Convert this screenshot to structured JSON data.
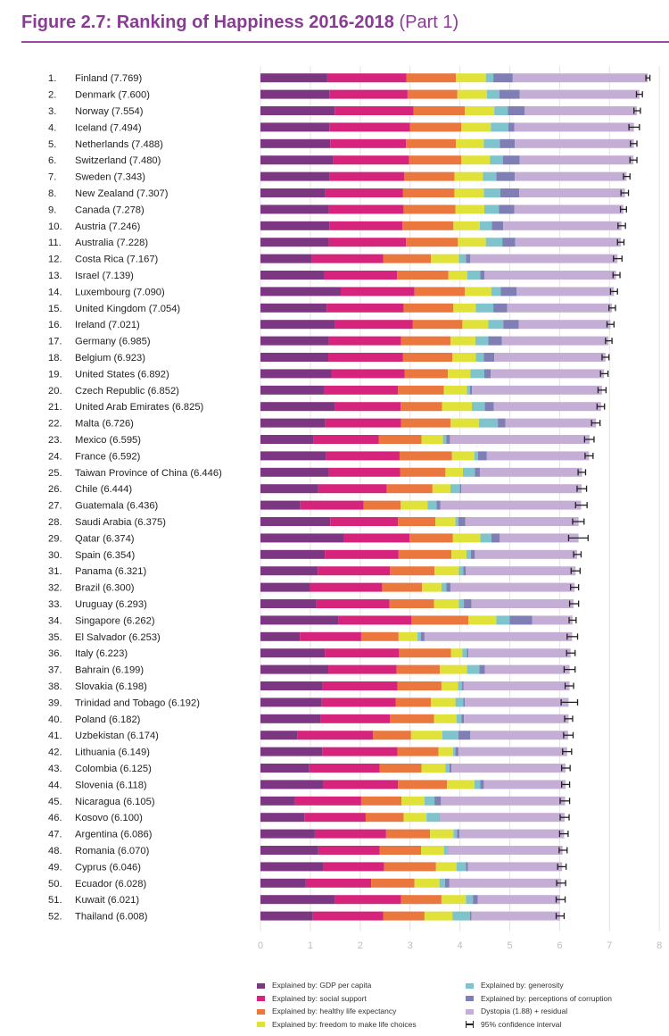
{
  "title": {
    "bold": "Figure 2.7: Ranking of Happiness 2016-2018",
    "suffix": "(Part 1)"
  },
  "colors": {
    "gdp": "#7d3782",
    "social": "#d6247c",
    "health": "#e9773e",
    "freedom": "#e0e23a",
    "generosity": "#7fc3cc",
    "corruption": "#7f7fb5",
    "dystopia": "#c4aed6",
    "axis_text": "#bdbdbd",
    "gridline": "#e3e3e3"
  },
  "chart_data": {
    "type": "bar",
    "orientation": "horizontal",
    "stacked": true,
    "title": "Figure 2.7: Ranking of Happiness 2016-2018 (Part 1)",
    "xlim": [
      0,
      8
    ],
    "xticks": [
      "0",
      "1",
      "2",
      "3",
      "4",
      "5",
      "6",
      "7",
      "8"
    ],
    "series_keys": [
      "gdp",
      "social",
      "health",
      "freedom",
      "generosity",
      "corruption",
      "dystopia"
    ],
    "legend": [
      {
        "key": "gdp",
        "label": "Explained by: GDP per capita"
      },
      {
        "key": "social",
        "label": "Explained by: social support"
      },
      {
        "key": "health",
        "label": "Explained by: healthy life expectancy"
      },
      {
        "key": "freedom",
        "label": "Explained by: freedom to make life choices"
      },
      {
        "key": "generosity",
        "label": "Explained by: generosity"
      },
      {
        "key": "corruption",
        "label": "Explained by: perceptions of corruption"
      },
      {
        "key": "dystopia",
        "label": "Dystopia (1.88) + residual"
      },
      {
        "key": "ci",
        "label": "95% confidence interval"
      }
    ],
    "rows": [
      {
        "rank": "1.",
        "label": "Finland (7.769)",
        "score": 7.769,
        "ci": [
          7.73,
          7.81
        ],
        "values": [
          1.34,
          1.59,
          0.99,
          0.6,
          0.15,
          0.39,
          2.71
        ]
      },
      {
        "rank": "2.",
        "label": "Denmark (7.600)",
        "score": 7.6,
        "ci": [
          7.54,
          7.66
        ],
        "values": [
          1.38,
          1.57,
          1.0,
          0.59,
          0.25,
          0.41,
          2.4
        ]
      },
      {
        "rank": "3.",
        "label": "Norway (7.554)",
        "score": 7.554,
        "ci": [
          7.49,
          7.62
        ],
        "values": [
          1.49,
          1.58,
          1.03,
          0.59,
          0.27,
          0.34,
          2.25
        ]
      },
      {
        "rank": "4.",
        "label": "Iceland (7.494)",
        "score": 7.494,
        "ci": [
          7.39,
          7.6
        ],
        "values": [
          1.38,
          1.62,
          1.03,
          0.59,
          0.35,
          0.12,
          2.4
        ]
      },
      {
        "rank": "5.",
        "label": "Netherlands (7.488)",
        "score": 7.488,
        "ci": [
          7.42,
          7.55
        ],
        "values": [
          1.4,
          1.52,
          1.0,
          0.56,
          0.32,
          0.3,
          2.39
        ]
      },
      {
        "rank": "6.",
        "label": "Switzerland (7.480)",
        "score": 7.48,
        "ci": [
          7.41,
          7.55
        ],
        "values": [
          1.45,
          1.53,
          1.05,
          0.57,
          0.26,
          0.34,
          2.28
        ]
      },
      {
        "rank": "7.",
        "label": "Sweden (7.343)",
        "score": 7.343,
        "ci": [
          7.28,
          7.41
        ],
        "values": [
          1.39,
          1.49,
          1.01,
          0.57,
          0.27,
          0.37,
          2.24
        ]
      },
      {
        "rank": "8.",
        "label": "New Zealand (7.307)",
        "score": 7.307,
        "ci": [
          7.23,
          7.38
        ],
        "values": [
          1.3,
          1.56,
          1.03,
          0.59,
          0.33,
          0.38,
          2.12
        ]
      },
      {
        "rank": "9.",
        "label": "Canada (7.278)",
        "score": 7.278,
        "ci": [
          7.22,
          7.34
        ],
        "values": [
          1.37,
          1.5,
          1.04,
          0.58,
          0.29,
          0.31,
          2.19
        ]
      },
      {
        "rank": "10.",
        "label": "Austria (7.246)",
        "score": 7.246,
        "ci": [
          7.17,
          7.32
        ],
        "values": [
          1.38,
          1.47,
          1.02,
          0.53,
          0.24,
          0.23,
          2.37
        ]
      },
      {
        "rank": "11.",
        "label": "Australia (7.228)",
        "score": 7.228,
        "ci": [
          7.16,
          7.29
        ],
        "values": [
          1.37,
          1.55,
          1.04,
          0.56,
          0.33,
          0.26,
          2.12
        ]
      },
      {
        "rank": "12.",
        "label": "Costa Rica (7.167)",
        "score": 7.167,
        "ci": [
          7.08,
          7.25
        ],
        "values": [
          1.03,
          1.43,
          0.96,
          0.56,
          0.14,
          0.09,
          2.95
        ]
      },
      {
        "rank": "13.",
        "label": "Israel (7.139)",
        "score": 7.139,
        "ci": [
          7.07,
          7.21
        ],
        "values": [
          1.28,
          1.46,
          1.03,
          0.38,
          0.26,
          0.08,
          2.64
        ]
      },
      {
        "rank": "14.",
        "label": "Luxembourg (7.090)",
        "score": 7.09,
        "ci": [
          7.02,
          7.16
        ],
        "values": [
          1.61,
          1.48,
          1.01,
          0.53,
          0.19,
          0.32,
          1.95
        ]
      },
      {
        "rank": "15.",
        "label": "United Kingdom (7.054)",
        "score": 7.054,
        "ci": [
          6.99,
          7.12
        ],
        "values": [
          1.33,
          1.54,
          1.0,
          0.45,
          0.35,
          0.28,
          2.1
        ]
      },
      {
        "rank": "16.",
        "label": "Ireland (7.021)",
        "score": 7.021,
        "ci": [
          6.95,
          7.09
        ],
        "values": [
          1.5,
          1.55,
          1.0,
          0.52,
          0.3,
          0.31,
          1.84
        ]
      },
      {
        "rank": "17.",
        "label": "Germany (6.985)",
        "score": 6.985,
        "ci": [
          6.92,
          7.05
        ],
        "values": [
          1.37,
          1.45,
          0.99,
          0.5,
          0.26,
          0.27,
          2.14
        ]
      },
      {
        "rank": "18.",
        "label": "Belgium (6.923)",
        "score": 6.923,
        "ci": [
          6.85,
          6.99
        ],
        "values": [
          1.36,
          1.5,
          0.99,
          0.47,
          0.16,
          0.21,
          2.23
        ]
      },
      {
        "rank": "19.",
        "label": "United States (6.892)",
        "score": 6.892,
        "ci": [
          6.82,
          6.97
        ],
        "values": [
          1.43,
          1.46,
          0.87,
          0.45,
          0.28,
          0.13,
          2.27
        ]
      },
      {
        "rank": "20.",
        "label": "Czech Republic (6.852)",
        "score": 6.852,
        "ci": [
          6.77,
          6.93
        ],
        "values": [
          1.27,
          1.49,
          0.92,
          0.46,
          0.06,
          0.04,
          2.61
        ]
      },
      {
        "rank": "21.",
        "label": "United Arab Emirates (6.825)",
        "score": 6.825,
        "ci": [
          6.75,
          6.9
        ],
        "values": [
          1.5,
          1.31,
          0.83,
          0.6,
          0.26,
          0.18,
          2.15
        ]
      },
      {
        "rank": "22.",
        "label": "Malta (6.726)",
        "score": 6.726,
        "ci": [
          6.64,
          6.81
        ],
        "values": [
          1.3,
          1.52,
          0.99,
          0.57,
          0.38,
          0.15,
          1.82
        ]
      },
      {
        "rank": "23.",
        "label": "Mexico (6.595)",
        "score": 6.595,
        "ci": [
          6.5,
          6.69
        ],
        "values": [
          1.07,
          1.3,
          0.86,
          0.43,
          0.07,
          0.07,
          2.8
        ]
      },
      {
        "rank": "24.",
        "label": "France (6.592)",
        "score": 6.592,
        "ci": [
          6.51,
          6.67
        ],
        "values": [
          1.32,
          1.47,
          1.05,
          0.45,
          0.07,
          0.18,
          2.05
        ]
      },
      {
        "rank": "25.",
        "label": "Taiwan Province of China (6.446)",
        "score": 6.446,
        "ci": [
          6.37,
          6.52
        ],
        "values": [
          1.37,
          1.43,
          0.91,
          0.35,
          0.24,
          0.1,
          2.05
        ]
      },
      {
        "rank": "26.",
        "label": "Chile (6.444)",
        "score": 6.444,
        "ci": [
          6.35,
          6.54
        ],
        "values": [
          1.16,
          1.37,
          0.92,
          0.36,
          0.19,
          0.03,
          2.41
        ]
      },
      {
        "rank": "27.",
        "label": "Guatemala (6.436)",
        "score": 6.436,
        "ci": [
          6.32,
          6.55
        ],
        "values": [
          0.8,
          1.27,
          0.74,
          0.54,
          0.18,
          0.08,
          2.82
        ]
      },
      {
        "rank": "28.",
        "label": "Saudi Arabia (6.375)",
        "score": 6.375,
        "ci": [
          6.26,
          6.49
        ],
        "values": [
          1.4,
          1.36,
          0.75,
          0.4,
          0.06,
          0.14,
          2.27
        ]
      },
      {
        "rank": "29.",
        "label": "Qatar (6.374)",
        "score": 6.374,
        "ci": [
          6.18,
          6.57
        ],
        "values": [
          1.68,
          1.31,
          0.87,
          0.55,
          0.22,
          0.17,
          1.58
        ]
      },
      {
        "rank": "30.",
        "label": "Spain (6.354)",
        "score": 6.354,
        "ci": [
          6.28,
          6.43
        ],
        "values": [
          1.29,
          1.48,
          1.06,
          0.3,
          0.09,
          0.08,
          2.05
        ]
      },
      {
        "rank": "31.",
        "label": "Panama (6.321)",
        "score": 6.321,
        "ci": [
          6.23,
          6.41
        ],
        "values": [
          1.15,
          1.45,
          0.89,
          0.49,
          0.09,
          0.05,
          2.2
        ]
      },
      {
        "rank": "32.",
        "label": "Brazil (6.300)",
        "score": 6.3,
        "ci": [
          6.22,
          6.38
        ],
        "values": [
          1.0,
          1.44,
          0.8,
          0.39,
          0.1,
          0.08,
          2.49
        ]
      },
      {
        "rank": "33.",
        "label": "Uruguay (6.293)",
        "score": 6.293,
        "ci": [
          6.2,
          6.38
        ],
        "values": [
          1.12,
          1.47,
          0.89,
          0.5,
          0.1,
          0.15,
          2.05
        ]
      },
      {
        "rank": "34.",
        "label": "Singapore (6.262)",
        "score": 6.262,
        "ci": [
          6.19,
          6.33
        ],
        "values": [
          1.57,
          1.46,
          1.14,
          0.56,
          0.27,
          0.45,
          0.81
        ]
      },
      {
        "rank": "35.",
        "label": "El Salvador (6.253)",
        "score": 6.253,
        "ci": [
          6.15,
          6.36
        ],
        "values": [
          0.79,
          1.23,
          0.75,
          0.38,
          0.07,
          0.07,
          2.96
        ]
      },
      {
        "rank": "36.",
        "label": "Italy (6.223)",
        "score": 6.223,
        "ci": [
          6.14,
          6.31
        ],
        "values": [
          1.29,
          1.49,
          1.04,
          0.23,
          0.09,
          0.03,
          2.05
        ]
      },
      {
        "rank": "37.",
        "label": "Bahrain (6.199)",
        "score": 6.199,
        "ci": [
          6.09,
          6.31
        ],
        "values": [
          1.36,
          1.37,
          0.87,
          0.54,
          0.25,
          0.11,
          1.7
        ]
      },
      {
        "rank": "38.",
        "label": "Slovakia (6.198)",
        "score": 6.198,
        "ci": [
          6.11,
          6.28
        ],
        "values": [
          1.25,
          1.5,
          0.88,
          0.33,
          0.08,
          0.03,
          2.13
        ]
      },
      {
        "rank": "39.",
        "label": "Trinidad and Tobago (6.192)",
        "score": 6.192,
        "ci": [
          6.03,
          6.36
        ],
        "values": [
          1.23,
          1.48,
          0.71,
          0.49,
          0.16,
          0.03,
          2.08
        ]
      },
      {
        "rank": "40.",
        "label": "Poland (6.182)",
        "score": 6.182,
        "ci": [
          6.1,
          6.26
        ],
        "values": [
          1.21,
          1.39,
          0.88,
          0.45,
          0.1,
          0.05,
          2.1
        ]
      },
      {
        "rank": "41.",
        "label": "Uzbekistan (6.174)",
        "score": 6.174,
        "ci": [
          6.08,
          6.27
        ],
        "values": [
          0.74,
          1.52,
          0.76,
          0.63,
          0.32,
          0.24,
          1.96
        ]
      },
      {
        "rank": "42.",
        "label": "Lithuania (6.149)",
        "score": 6.149,
        "ci": [
          6.06,
          6.24
        ],
        "values": [
          1.24,
          1.51,
          0.82,
          0.29,
          0.05,
          0.06,
          2.18
        ]
      },
      {
        "rank": "43.",
        "label": "Colombia (6.125)",
        "score": 6.125,
        "ci": [
          6.04,
          6.21
        ],
        "values": [
          0.98,
          1.41,
          0.84,
          0.48,
          0.08,
          0.04,
          2.29
        ]
      },
      {
        "rank": "44.",
        "label": "Slovenia (6.118)",
        "score": 6.118,
        "ci": [
          6.04,
          6.2
        ],
        "values": [
          1.26,
          1.5,
          0.98,
          0.55,
          0.12,
          0.07,
          1.64
        ]
      },
      {
        "rank": "45.",
        "label": "Nicaragua (6.105)",
        "score": 6.105,
        "ci": [
          6.01,
          6.2
        ],
        "values": [
          0.69,
          1.33,
          0.81,
          0.46,
          0.2,
          0.13,
          2.49
        ]
      },
      {
        "rank": "46.",
        "label": "Kosovo (6.100)",
        "score": 6.1,
        "ci": [
          6.01,
          6.19
        ],
        "values": [
          0.88,
          1.23,
          0.76,
          0.46,
          0.26,
          0.01,
          2.5
        ]
      },
      {
        "rank": "47.",
        "label": "Argentina (6.086)",
        "score": 6.086,
        "ci": [
          6.0,
          6.17
        ],
        "values": [
          1.09,
          1.43,
          0.88,
          0.47,
          0.07,
          0.05,
          2.1
        ]
      },
      {
        "rank": "48.",
        "label": "Romania (6.070)",
        "score": 6.07,
        "ci": [
          5.99,
          6.15
        ],
        "values": [
          1.16,
          1.23,
          0.83,
          0.46,
          0.08,
          0.01,
          2.29
        ]
      },
      {
        "rank": "49.",
        "label": "Cyprus (6.046)",
        "score": 6.046,
        "ci": [
          5.96,
          6.13
        ],
        "values": [
          1.26,
          1.22,
          1.04,
          0.41,
          0.19,
          0.04,
          1.89
        ]
      },
      {
        "rank": "50.",
        "label": "Ecuador (6.028)",
        "score": 6.028,
        "ci": [
          5.94,
          6.12
        ],
        "values": [
          0.91,
          1.31,
          0.87,
          0.5,
          0.11,
          0.09,
          2.24
        ]
      },
      {
        "rank": "51.",
        "label": "Kuwait (6.021)",
        "score": 6.021,
        "ci": [
          5.93,
          6.11
        ],
        "values": [
          1.5,
          1.32,
          0.81,
          0.49,
          0.14,
          0.1,
          1.65
        ]
      },
      {
        "rank": "52.",
        "label": "Thailand (6.008)",
        "score": 6.008,
        "ci": [
          5.93,
          6.09
        ],
        "values": [
          1.05,
          1.41,
          0.83,
          0.56,
          0.35,
          0.03,
          1.78
        ]
      }
    ]
  }
}
